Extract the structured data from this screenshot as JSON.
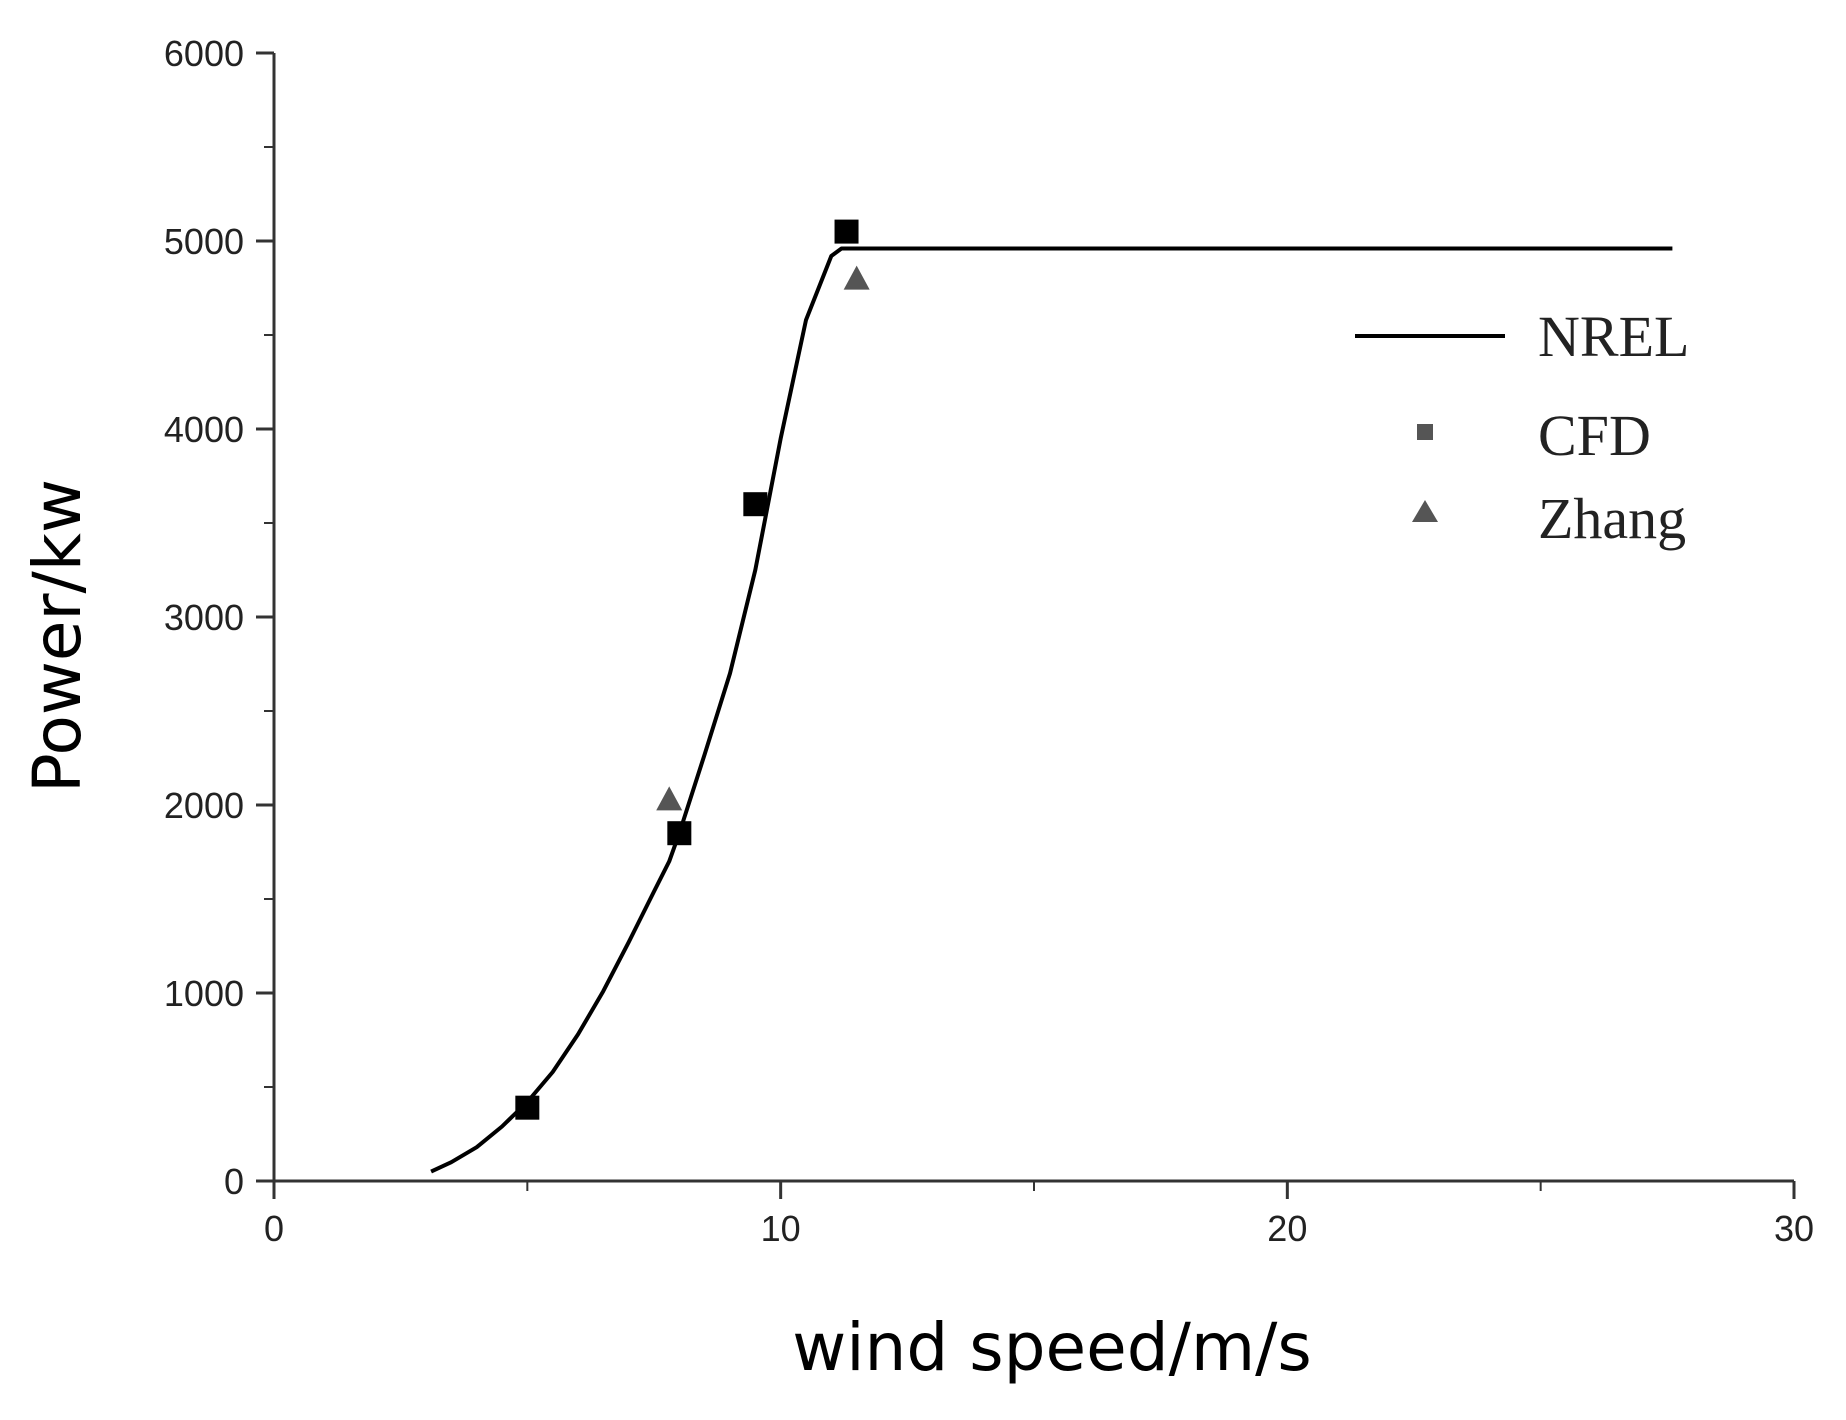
{
  "chart_data": {
    "type": "line",
    "xlabel": "wind speed/m/s",
    "ylabel": "Power/kw",
    "xlim": [
      0,
      30
    ],
    "ylim": [
      0,
      6000
    ],
    "x_ticks": [
      0,
      10,
      20,
      30
    ],
    "y_ticks": [
      0,
      1000,
      2000,
      3000,
      4000,
      5000,
      6000
    ],
    "x_tick_labels": [
      "0",
      "10",
      "20",
      "30"
    ],
    "y_tick_labels": [
      "0",
      "1000",
      "2000",
      "3000",
      "4000",
      "5000",
      "6000"
    ],
    "grid": false,
    "legend_position": "right",
    "series": [
      {
        "name": "NREL",
        "kind": "line",
        "color": "#000000",
        "x": [
          3.1,
          3.5,
          4.0,
          4.5,
          5.0,
          5.5,
          6.0,
          6.5,
          7.0,
          7.5,
          7.8,
          8.0,
          8.5,
          9.0,
          9.5,
          10.0,
          10.5,
          11.0,
          11.2,
          12.0,
          15.0,
          20.0,
          25.0,
          27.6
        ],
        "y": [
          50,
          100,
          180,
          290,
          420,
          580,
          780,
          1010,
          1270,
          1540,
          1700,
          1850,
          2270,
          2700,
          3250,
          3950,
          4580,
          4920,
          4960,
          4960,
          4960,
          4960,
          4960,
          4960
        ]
      },
      {
        "name": "CFD",
        "kind": "scatter",
        "marker": "square",
        "color": "#000000",
        "x": [
          5.0,
          8.0,
          9.5,
          11.3
        ],
        "y": [
          390,
          1850,
          3600,
          5050
        ]
      },
      {
        "name": "Zhang",
        "kind": "scatter",
        "marker": "triangle",
        "color": "#555555",
        "x": [
          7.8,
          11.5
        ],
        "y": [
          2030,
          4800
        ]
      }
    ]
  }
}
